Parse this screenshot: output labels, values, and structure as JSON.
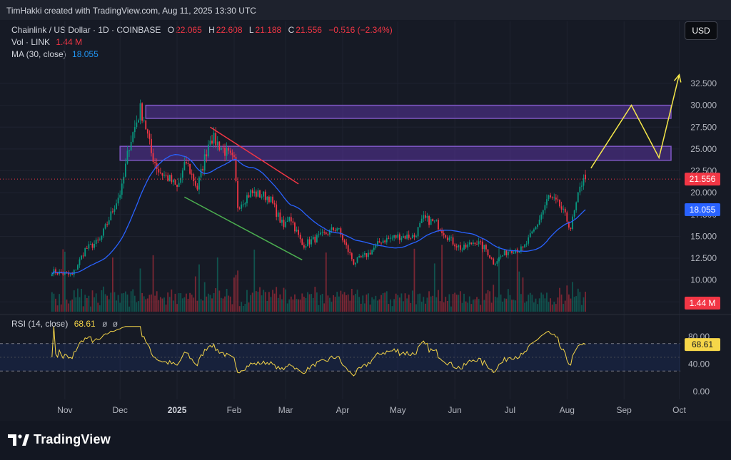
{
  "header": {
    "attribution": "TimHakki created with TradingView.com, Aug 11, 2025 13:30 UTC"
  },
  "currency_button": "USD",
  "legend": {
    "symbol": "Chainlink / US Dollar · 1D · COINBASE",
    "o_label": "O",
    "o_value": "22.065",
    "h_label": "H",
    "h_value": "22.608",
    "l_label": "L",
    "l_value": "21.188",
    "c_label": "C",
    "c_value": "21.556",
    "change": "−0.516 (−2.34%)",
    "vol_label": "Vol · LINK",
    "vol_value": "1.44 M",
    "ma_label": "MA (30, close)",
    "ma_value": "18.055",
    "rsi_label": "RSI (14, close)",
    "rsi_value": "68.61"
  },
  "badges": {
    "last_price": "21.556",
    "ma": "18.055",
    "volume": "1.44 M",
    "rsi": "68.61"
  },
  "logo_text": "TradingView",
  "colors": {
    "up": "#089981",
    "down": "#f23645",
    "ma": "#2962ff",
    "rsi": "#f6d649",
    "zone": "#673ab7",
    "projection": "#f6e84a",
    "resistance_line": "#f23645",
    "support_line": "#4caf50"
  },
  "icons": [
    "eye-off-icon",
    "settings-icon",
    "tradingview-logo-icon"
  ],
  "chart_data": {
    "type": "candlestick",
    "price_axis_ticks": [
      "32.500",
      "30.000",
      "27.500",
      "25.000",
      "22.500",
      "20.000",
      "17.500",
      "15.000",
      "12.500",
      "10.000",
      "7.500"
    ],
    "ylim": [
      7.5,
      33.5
    ],
    "rsi_axis_ticks": [
      "80.00",
      "40.00",
      "0.00"
    ],
    "rsi_levels": [
      70,
      30
    ],
    "time_ticks": [
      "Nov",
      "Dec",
      "2025",
      "Feb",
      "Mar",
      "Apr",
      "May",
      "Jun",
      "Jul",
      "Aug",
      "Sep",
      "Oct"
    ],
    "close_anchors": [
      [
        "2024-10-25",
        11.0
      ],
      [
        "2024-11-05",
        10.5
      ],
      [
        "2024-11-12",
        13.5
      ],
      [
        "2024-11-20",
        14.5
      ],
      [
        "2024-11-28",
        18.5
      ],
      [
        "2024-12-02",
        20.5
      ],
      [
        "2024-12-06",
        25.5
      ],
      [
        "2024-12-12",
        29.5
      ],
      [
        "2024-12-14",
        28.5
      ],
      [
        "2024-12-18",
        24.5
      ],
      [
        "2024-12-22",
        22.5
      ],
      [
        "2024-12-28",
        21.5
      ],
      [
        "2025-01-01",
        20.5
      ],
      [
        "2025-01-06",
        23.5
      ],
      [
        "2025-01-12",
        20.5
      ],
      [
        "2025-01-19",
        26.5
      ],
      [
        "2025-01-26",
        25.0
      ],
      [
        "2025-02-01",
        23.5
      ],
      [
        "2025-02-03",
        18.5
      ],
      [
        "2025-02-10",
        20.0
      ],
      [
        "2025-02-20",
        19.5
      ],
      [
        "2025-02-28",
        16.0
      ],
      [
        "2025-03-03",
        17.5
      ],
      [
        "2025-03-10",
        14.0
      ],
      [
        "2025-03-20",
        15.0
      ],
      [
        "2025-03-29",
        16.0
      ],
      [
        "2025-04-07",
        12.0
      ],
      [
        "2025-04-15",
        13.0
      ],
      [
        "2025-04-22",
        14.5
      ],
      [
        "2025-05-01",
        15.0
      ],
      [
        "2025-05-10",
        15.0
      ],
      [
        "2025-05-15",
        17.0
      ],
      [
        "2025-05-22",
        16.5
      ],
      [
        "2025-05-30",
        14.5
      ],
      [
        "2025-06-05",
        13.5
      ],
      [
        "2025-06-12",
        14.5
      ],
      [
        "2025-06-18",
        13.5
      ],
      [
        "2025-06-22",
        12.0
      ],
      [
        "2025-07-01",
        13.5
      ],
      [
        "2025-07-08",
        13.5
      ],
      [
        "2025-07-15",
        16.0
      ],
      [
        "2025-07-22",
        19.5
      ],
      [
        "2025-07-28",
        18.5
      ],
      [
        "2025-08-03",
        16.0
      ],
      [
        "2025-08-07",
        19.5
      ],
      [
        "2025-08-10",
        22.0
      ],
      [
        "2025-08-11",
        21.556
      ]
    ],
    "ma_period": 30,
    "ma_last": 18.055,
    "last_close": 21.556,
    "last_volume": "1.44 M",
    "rsi_last": 68.61,
    "zones": [
      {
        "from": "2024-12-15",
        "to": "2025-10-01",
        "low": 28.5,
        "high": 30.0
      },
      {
        "from": "2024-12-01",
        "to": "2025-10-01",
        "low": 23.7,
        "high": 25.3
      }
    ],
    "trendlines": [
      {
        "role": "resistance",
        "points": [
          [
            "2025-01-19",
            27.5
          ],
          [
            "2025-03-08",
            21.0
          ]
        ]
      },
      {
        "role": "support",
        "points": [
          [
            "2025-01-05",
            19.5
          ],
          [
            "2025-03-10",
            12.3
          ]
        ]
      }
    ],
    "projection_path": [
      [
        "2025-08-14",
        22.8
      ],
      [
        "2025-09-05",
        30.0
      ],
      [
        "2025-09-20",
        24.0
      ],
      [
        "2025-10-01",
        33.5
      ]
    ]
  }
}
